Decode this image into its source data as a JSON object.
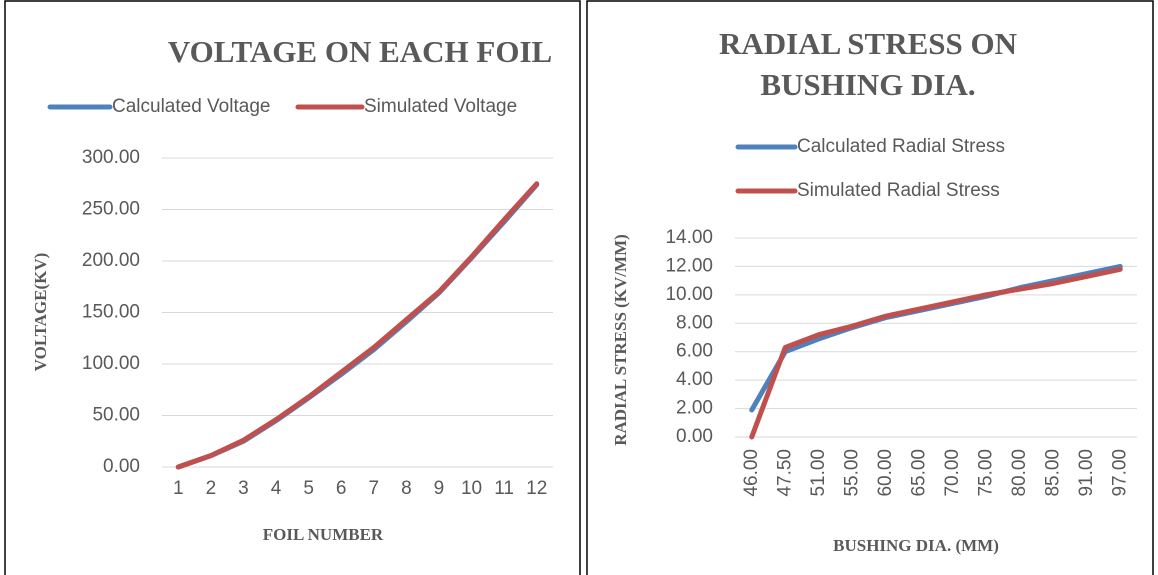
{
  "chart_data": [
    {
      "type": "line",
      "title": [
        "VOLTAGE ON EACH FOIL"
      ],
      "x_label": "FOIL NUMBER",
      "y_label": "VOLTAGE(KV)",
      "categories": [
        "1",
        "2",
        "3",
        "4",
        "5",
        "6",
        "7",
        "8",
        "9",
        "10",
        "11",
        "12"
      ],
      "series": [
        {
          "name": "Calculated Voltage",
          "color": "#4f81bd",
          "values": [
            0,
            11,
            25,
            45,
            67,
            90,
            114,
            141,
            169,
            203,
            238,
            274
          ]
        },
        {
          "name": "Simulated Voltage",
          "color": "#c0504d",
          "values": [
            0,
            11,
            26,
            46,
            68,
            92,
            116,
            143,
            170,
            204,
            240,
            275
          ]
        }
      ],
      "ylim": [
        0,
        300
      ],
      "yticks": [
        {
          "value": 0,
          "label": "0.00"
        },
        {
          "value": 50,
          "label": "50.00"
        },
        {
          "value": 100,
          "label": "100.00"
        },
        {
          "value": 150,
          "label": "150.00"
        },
        {
          "value": 200,
          "label": "200.00"
        },
        {
          "value": 250,
          "label": "250.00"
        },
        {
          "value": 300,
          "label": "300.00"
        }
      ],
      "grid": true,
      "legend": "top"
    },
    {
      "type": "line",
      "title": [
        "RADIAL STRESS ON",
        "BUSHING DIA."
      ],
      "x_label": "BUSHING DIA. (MM)",
      "y_label": "RADIAL STRESS (KV/MM)",
      "categories": [
        "46.00",
        "47.50",
        "51.00",
        "55.00",
        "60.00",
        "65.00",
        "70.00",
        "75.00",
        "80.00",
        "85.00",
        "91.00",
        "97.00"
      ],
      "series": [
        {
          "name": "Calculated Radial Stress",
          "color": "#4f81bd",
          "values": [
            1.9,
            6.0,
            6.9,
            7.7,
            8.4,
            8.9,
            9.4,
            9.9,
            10.5,
            11.0,
            11.5,
            12.0
          ]
        },
        {
          "name": "Simulated Radial Stress",
          "color": "#c0504d",
          "values": [
            0,
            6.3,
            7.2,
            7.8,
            8.5,
            9.0,
            9.5,
            10.0,
            10.4,
            10.8,
            11.3,
            11.8
          ]
        }
      ],
      "ylim": [
        0,
        14
      ],
      "yticks": [
        {
          "value": 0,
          "label": "0.00"
        },
        {
          "value": 2,
          "label": "2.00"
        },
        {
          "value": 4,
          "label": "4.00"
        },
        {
          "value": 6,
          "label": "6.00"
        },
        {
          "value": 8,
          "label": "8.00"
        },
        {
          "value": 10,
          "label": "10.00"
        },
        {
          "value": 12,
          "label": "12.00"
        },
        {
          "value": 14,
          "label": "14.00"
        }
      ],
      "grid": true,
      "legend": "top-stacked"
    }
  ]
}
